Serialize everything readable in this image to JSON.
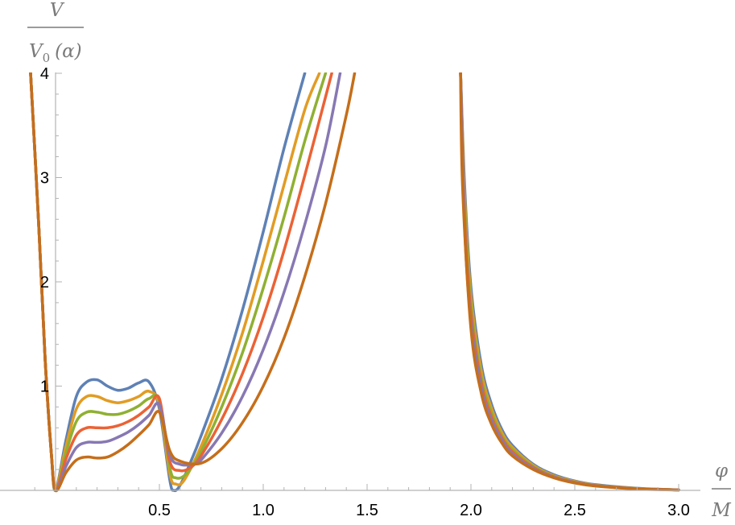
{
  "chart_data": {
    "type": "line",
    "title": "",
    "xlabel": "φ / M",
    "ylabel": "V / V0(α)",
    "xlim": [
      -0.13,
      3.0
    ],
    "ylim": [
      0,
      4
    ],
    "x_ticks": [
      "0.5",
      "1.0",
      "1.5",
      "2.0",
      "2.5",
      "3.0"
    ],
    "x_tick_values": [
      0.5,
      1.0,
      1.5,
      2.0,
      2.5,
      3.0
    ],
    "y_ticks": [
      "1",
      "2",
      "3",
      "4"
    ],
    "y_tick_values": [
      1,
      2,
      3,
      4
    ],
    "grid": false,
    "legend": "none",
    "series": [
      {
        "color": "#5e81b5",
        "x": [
          -0.12,
          -0.08,
          -0.05,
          -0.02,
          0.0,
          0.05,
          0.1,
          0.15,
          0.2,
          0.25,
          0.3,
          0.35,
          0.4,
          0.45,
          0.5,
          0.55,
          0.57,
          0.6,
          0.65,
          0.7,
          0.8,
          0.9,
          1.0,
          1.1,
          1.2
        ],
        "y": [
          4.0,
          2.5,
          1.25,
          0.35,
          0.0,
          0.48,
          0.9,
          1.04,
          1.06,
          1.0,
          0.96,
          0.98,
          1.03,
          1.04,
          0.78,
          0.1,
          0.0,
          0.05,
          0.27,
          0.52,
          1.07,
          1.73,
          2.48,
          3.28,
          4.0
        ]
      },
      {
        "color": "#e19c24",
        "x": [
          -0.12,
          -0.08,
          -0.05,
          -0.02,
          0.0,
          0.05,
          0.1,
          0.15,
          0.2,
          0.25,
          0.3,
          0.35,
          0.4,
          0.45,
          0.5,
          0.55,
          0.58,
          0.62,
          0.7,
          0.8,
          0.9,
          1.0,
          1.1,
          1.2,
          1.27
        ],
        "y": [
          4.0,
          2.5,
          1.25,
          0.35,
          0.0,
          0.42,
          0.78,
          0.9,
          0.9,
          0.86,
          0.84,
          0.86,
          0.9,
          0.95,
          0.82,
          0.16,
          0.06,
          0.1,
          0.42,
          0.92,
          1.51,
          2.2,
          2.93,
          3.65,
          4.0
        ]
      },
      {
        "color": "#8fb032",
        "x": [
          -0.12,
          -0.08,
          -0.05,
          -0.02,
          0.0,
          0.05,
          0.1,
          0.15,
          0.2,
          0.25,
          0.3,
          0.35,
          0.4,
          0.45,
          0.5,
          0.55,
          0.58,
          0.63,
          0.7,
          0.8,
          0.9,
          1.0,
          1.1,
          1.2,
          1.3
        ],
        "y": [
          4.0,
          2.5,
          1.25,
          0.35,
          0.0,
          0.36,
          0.66,
          0.75,
          0.75,
          0.73,
          0.73,
          0.76,
          0.81,
          0.88,
          0.86,
          0.22,
          0.12,
          0.16,
          0.37,
          0.8,
          1.32,
          1.94,
          2.62,
          3.35,
          4.0
        ]
      },
      {
        "color": "#eb6235",
        "x": [
          -0.12,
          -0.08,
          -0.05,
          -0.02,
          0.0,
          0.05,
          0.1,
          0.15,
          0.2,
          0.25,
          0.3,
          0.35,
          0.4,
          0.45,
          0.5,
          0.55,
          0.6,
          0.65,
          0.7,
          0.8,
          0.9,
          1.0,
          1.1,
          1.2,
          1.33
        ],
        "y": [
          4.0,
          2.5,
          1.25,
          0.35,
          0.0,
          0.3,
          0.53,
          0.6,
          0.6,
          0.6,
          0.62,
          0.66,
          0.72,
          0.8,
          0.88,
          0.28,
          0.19,
          0.22,
          0.33,
          0.68,
          1.12,
          1.66,
          2.3,
          3.02,
          4.0
        ]
      },
      {
        "color": "#8778b3",
        "x": [
          -0.12,
          -0.08,
          -0.05,
          -0.02,
          0.0,
          0.05,
          0.1,
          0.15,
          0.2,
          0.25,
          0.3,
          0.35,
          0.4,
          0.45,
          0.5,
          0.55,
          0.6,
          0.66,
          0.7,
          0.8,
          0.9,
          1.0,
          1.1,
          1.2,
          1.3,
          1.37
        ],
        "y": [
          4.0,
          2.5,
          1.25,
          0.35,
          0.0,
          0.23,
          0.41,
          0.46,
          0.46,
          0.47,
          0.51,
          0.56,
          0.63,
          0.72,
          0.82,
          0.34,
          0.25,
          0.25,
          0.29,
          0.55,
          0.9,
          1.35,
          1.9,
          2.55,
          3.3,
          4.0
        ]
      },
      {
        "color": "#c56e1a",
        "x": [
          -0.12,
          -0.08,
          -0.05,
          -0.02,
          0.0,
          0.05,
          0.1,
          0.15,
          0.2,
          0.25,
          0.3,
          0.35,
          0.4,
          0.45,
          0.5,
          0.55,
          0.6,
          0.7,
          0.8,
          0.9,
          1.0,
          1.1,
          1.2,
          1.3,
          1.4,
          1.44
        ],
        "y": [
          4.0,
          2.5,
          1.25,
          0.35,
          0.0,
          0.17,
          0.29,
          0.32,
          0.31,
          0.32,
          0.37,
          0.44,
          0.53,
          0.63,
          0.75,
          0.38,
          0.28,
          0.26,
          0.4,
          0.65,
          1.0,
          1.46,
          2.05,
          2.75,
          3.6,
          4.0
        ]
      },
      {
        "color": "#5e81b5",
        "x": [
          1.95,
          1.97,
          2.0,
          2.05,
          2.1,
          2.15,
          2.2,
          2.3,
          2.4,
          2.5,
          2.6,
          2.8,
          3.0
        ],
        "y": [
          4.0,
          2.9,
          1.95,
          1.2,
          0.82,
          0.58,
          0.43,
          0.25,
          0.15,
          0.09,
          0.055,
          0.02,
          0.005
        ]
      },
      {
        "color": "#e19c24",
        "x": [
          1.95,
          1.97,
          2.0,
          2.05,
          2.1,
          2.15,
          2.2,
          2.3,
          2.4,
          2.5,
          2.6,
          2.8,
          3.0
        ],
        "y": [
          4.0,
          2.8,
          1.86,
          1.14,
          0.78,
          0.55,
          0.41,
          0.24,
          0.14,
          0.085,
          0.05,
          0.018,
          0.005
        ]
      },
      {
        "color": "#8fb032",
        "x": [
          1.95,
          1.97,
          2.0,
          2.05,
          2.1,
          2.15,
          2.2,
          2.3,
          2.4,
          2.5,
          2.6,
          2.8,
          3.0
        ],
        "y": [
          4.0,
          2.7,
          1.78,
          1.08,
          0.74,
          0.52,
          0.39,
          0.23,
          0.135,
          0.08,
          0.048,
          0.017,
          0.005
        ]
      },
      {
        "color": "#eb6235",
        "x": [
          1.95,
          1.97,
          2.0,
          2.05,
          2.1,
          2.15,
          2.2,
          2.3,
          2.4,
          2.5,
          2.6,
          2.8,
          3.0
        ],
        "y": [
          4.0,
          2.6,
          1.7,
          1.03,
          0.7,
          0.5,
          0.37,
          0.22,
          0.13,
          0.077,
          0.046,
          0.016,
          0.005
        ]
      },
      {
        "color": "#8778b3",
        "x": [
          1.95,
          1.97,
          2.0,
          2.05,
          2.1,
          2.15,
          2.2,
          2.3,
          2.4,
          2.5,
          2.6,
          2.8,
          3.0
        ],
        "y": [
          4.0,
          2.5,
          1.62,
          0.98,
          0.67,
          0.48,
          0.35,
          0.21,
          0.125,
          0.074,
          0.044,
          0.015,
          0.005
        ]
      },
      {
        "color": "#c56e1a",
        "x": [
          1.95,
          1.96,
          2.0,
          2.05,
          2.1,
          2.15,
          2.2,
          2.3,
          2.4,
          2.5,
          2.6,
          2.8,
          3.0
        ],
        "y": [
          4.0,
          2.9,
          1.55,
          0.93,
          0.63,
          0.45,
          0.33,
          0.2,
          0.12,
          0.07,
          0.042,
          0.014,
          0.004
        ]
      }
    ]
  },
  "axis_text": {
    "y_numerator": "V",
    "y_denominator": "V",
    "y_denominator_sub": "0",
    "y_denominator_arg": "(α)",
    "x_numerator": "φ",
    "x_denominator": "M"
  }
}
